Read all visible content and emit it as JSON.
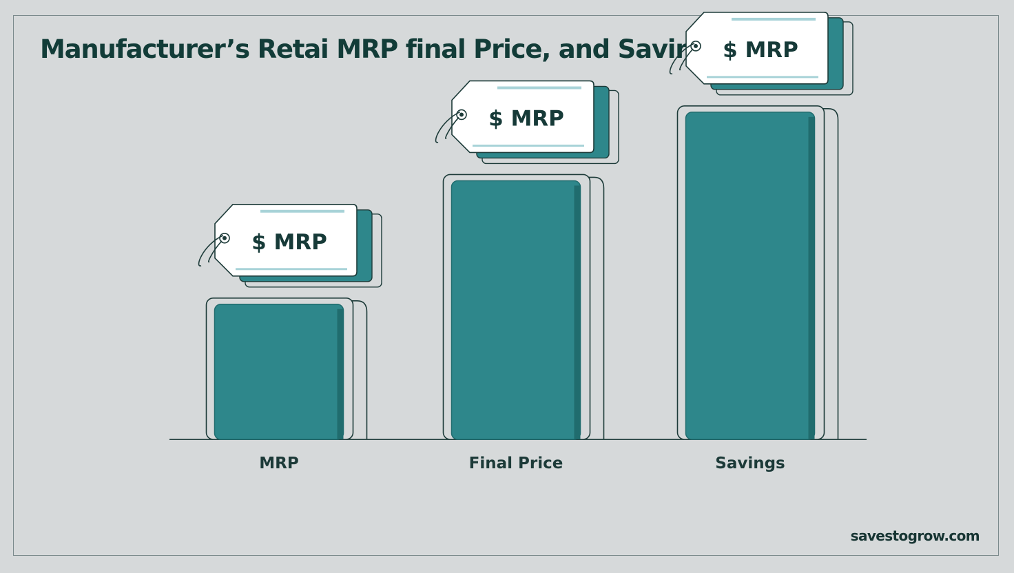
{
  "page": {
    "title": "Manufacturer’s Retai MRP final Price, and Savings",
    "watermark": "savestogrow.com"
  },
  "chart_data": {
    "type": "bar",
    "title": "Manufacturer’s Retai MRP final Price, and Savings",
    "categories": [
      "MRP",
      "Final Price",
      "Savings"
    ],
    "values": [
      1.0,
      1.9,
      2.4
    ],
    "data_labels": [
      "$ MRP",
      "$ MRP",
      "$ MRP"
    ],
    "xlabel": "",
    "ylabel": "",
    "ylim": [
      0,
      2.6
    ],
    "grid": false,
    "legend": "none",
    "colors": {
      "bar_fill": "#2e878b",
      "bar_shadow": "#206c6e",
      "tag_fill": "#ffffff",
      "tag_accent": "#a8d3d8",
      "outline": "#1d3b39",
      "background": "#d6d9da"
    }
  }
}
